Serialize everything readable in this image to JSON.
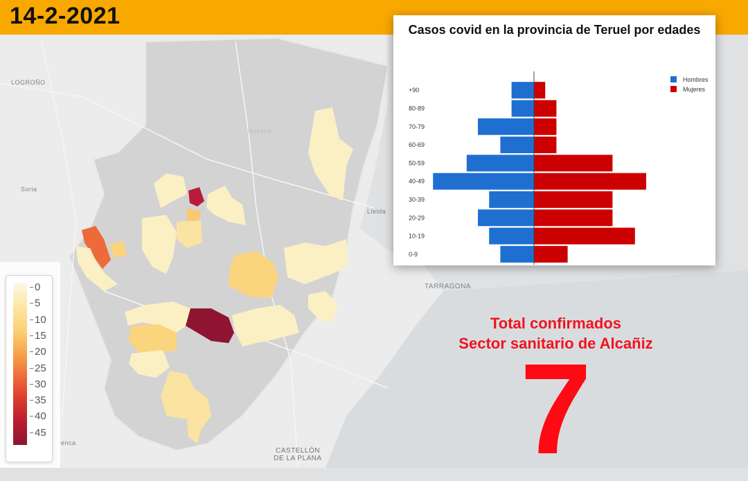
{
  "header": {
    "date": "14-2-2021"
  },
  "map": {
    "cities": {
      "logrono": "LOGROÑO",
      "soria": "Soria",
      "huesca": "Huesca",
      "lleida": "Lleida",
      "tarragona": "TARRAGONA",
      "castellon_1": "CASTELLÓN",
      "castellon_2": "DE LA PLANA",
      "cuenca": "enca"
    }
  },
  "legend": {
    "labels": [
      "0",
      "5",
      "10",
      "15",
      "20",
      "25",
      "30",
      "35",
      "40",
      "45"
    ]
  },
  "chart_data": {
    "type": "bar",
    "orientation": "horizontal-pyramid",
    "title": "Casos covid en la provincia de Teruel por edades",
    "categories": [
      "+90",
      "80-89",
      "70-79",
      "60-69",
      "50-59",
      "40-49",
      "30-39",
      "20-29",
      "10-19",
      "0-9"
    ],
    "series": [
      {
        "name": "Hombres",
        "color": "#1f6fd1",
        "values": [
          2,
          2,
          5,
          3,
          6,
          9,
          4,
          5,
          4,
          3
        ]
      },
      {
        "name": "Mujeres",
        "color": "#cc0000",
        "values": [
          1,
          2,
          2,
          2,
          7,
          10,
          7,
          7,
          9,
          3
        ]
      }
    ],
    "legend_position": "top-right",
    "grid": false
  },
  "total": {
    "line1": "Total confirmados",
    "line2": "Sector sanitario de Alcañiz",
    "value": "7"
  }
}
